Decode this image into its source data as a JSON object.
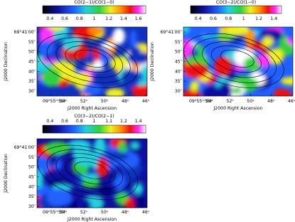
{
  "panels": [
    {
      "colorbar_title": "CO(2−1)/CO(1−0)",
      "colorbar_ticks": [
        "0.4",
        "0.6",
        "0.8",
        "1",
        "1.2",
        "1.4",
        "1.6"
      ],
      "y_ticks": [
        "69°41′00″",
        "55″",
        "50″",
        "45″",
        "40″",
        "35″",
        "30″"
      ],
      "x_ticks": [
        "09ʰ55ᵐ56ˢ",
        "54ˢ",
        "52ˢ",
        "50ˢ",
        "48ˢ",
        "46ˢ"
      ],
      "x_label": "J2000 Right Ascension",
      "y_label": "J2000 Declination"
    },
    {
      "colorbar_title": "CO(3−2)/CO(1−0)",
      "colorbar_ticks": [
        "0.4",
        "0.6",
        "0.8",
        "1",
        "1.2",
        "1.4"
      ],
      "y_ticks": [
        "69°41′00″",
        "55″",
        "50″",
        "45″",
        "40″",
        "35″",
        "30″"
      ],
      "x_ticks": [
        "09ʰ55ᵐ56ˢ",
        "54ˢ",
        "52ˢ",
        "50ˢ",
        "48ˢ",
        "46ˢ"
      ],
      "x_label": "J2000 Right Ascension",
      "y_label": "J2000 Declination"
    },
    {
      "colorbar_title": "CO(3−2)/CO(2−1)",
      "colorbar_ticks": [
        "0.4",
        "0.6",
        "0.8",
        "1",
        "1.1",
        "1.2",
        "1.4"
      ],
      "y_ticks": [
        "69°41′00″",
        "55″",
        "50″",
        "45″",
        "40″",
        "35″",
        "30″"
      ],
      "x_ticks": [
        "09ʰ55ᵐ56ˢ",
        "54ˢ",
        "52ˢ",
        "50ˢ",
        "48ˢ",
        "46ˢ"
      ],
      "x_label": "J2000 Right Ascension",
      "y_label": "J2000 Declination"
    }
  ]
}
